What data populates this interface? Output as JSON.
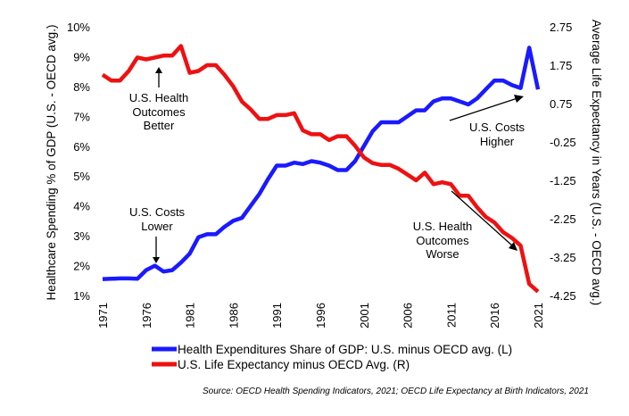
{
  "chart_data": {
    "type": "line",
    "title": "",
    "xlabel": "",
    "ylabel": "Healthcare Spending % of GDP (U.S. - OECD avg.)",
    "y2label": "Average Life Expectancy in Years (U.S. - OECD avg.)",
    "ylim": [
      1,
      10
    ],
    "y2lim": [
      -4.25,
      2.75
    ],
    "xlim": [
      1971,
      2021
    ],
    "grid": false,
    "legend_position": "bottom",
    "x_ticks": [
      "1971",
      "1976",
      "1981",
      "1986",
      "1991",
      "1996",
      "2001",
      "2006",
      "2011",
      "2016",
      "2021"
    ],
    "y_ticks": [
      "10%",
      "9%",
      "8%",
      "7%",
      "6%",
      "5%",
      "4%",
      "3%",
      "2%",
      "1%"
    ],
    "y2_ticks": [
      "2.75",
      "1.75",
      "0.75",
      "-0.25",
      "-1.25",
      "-2.25",
      "-3.25",
      "-4.25"
    ],
    "x": [
      1971,
      1972,
      1973,
      1974,
      1975,
      1976,
      1977,
      1978,
      1979,
      1980,
      1981,
      1982,
      1983,
      1984,
      1985,
      1986,
      1987,
      1988,
      1989,
      1990,
      1991,
      1992,
      1993,
      1994,
      1995,
      1996,
      1997,
      1998,
      1999,
      2000,
      2001,
      2002,
      2003,
      2004,
      2005,
      2006,
      2007,
      2008,
      2009,
      2010,
      2011,
      2012,
      2013,
      2014,
      2015,
      2016,
      2017,
      2018,
      2019,
      2020,
      2021
    ],
    "series": [
      {
        "name": "Health Expenditures Share of GDP: U.S. minus OECD avg. (L)",
        "axis": "left",
        "color": "#1a1aff",
        "values": [
          1.55,
          1.56,
          1.57,
          1.57,
          1.56,
          1.85,
          2.0,
          1.8,
          1.85,
          2.1,
          2.4,
          2.95,
          3.05,
          3.05,
          3.3,
          3.5,
          3.6,
          4.0,
          4.4,
          4.9,
          5.35,
          5.35,
          5.45,
          5.4,
          5.5,
          5.45,
          5.35,
          5.2,
          5.2,
          5.5,
          6.0,
          6.5,
          6.8,
          6.8,
          6.8,
          7.0,
          7.2,
          7.2,
          7.5,
          7.6,
          7.6,
          7.5,
          7.4,
          7.6,
          7.9,
          8.2,
          8.2,
          8.05,
          7.95,
          9.3,
          7.9
        ]
      },
      {
        "name": "U.S. Life Expectancy minus OECD Avg. (R)",
        "axis": "right",
        "color": "#ee1111",
        "values": [
          1.5,
          1.35,
          1.35,
          1.6,
          1.95,
          1.9,
          1.95,
          2.0,
          2.0,
          2.25,
          1.55,
          1.6,
          1.75,
          1.75,
          1.5,
          1.2,
          0.8,
          0.6,
          0.35,
          0.35,
          0.45,
          0.45,
          0.5,
          0.05,
          -0.05,
          -0.05,
          -0.2,
          -0.1,
          -0.1,
          -0.35,
          -0.65,
          -0.8,
          -0.85,
          -0.85,
          -0.95,
          -1.1,
          -1.25,
          -1.05,
          -1.35,
          -1.3,
          -1.35,
          -1.65,
          -1.65,
          -1.95,
          -2.2,
          -2.35,
          -2.6,
          -2.75,
          -2.95,
          -3.95,
          -4.15
        ]
      }
    ],
    "annotations": {
      "better": [
        "U.S. Health",
        "Outcomes",
        "Better"
      ],
      "lower": [
        "U.S. Costs",
        "Lower"
      ],
      "higher": [
        "U.S. Costs",
        "Higher"
      ],
      "worse": [
        "U.S. Health",
        "Outcomes",
        "Worse"
      ]
    },
    "source": "Source: OECD Health Spending Indicators, 2021; OECD Life Expectancy at Birth Indicators, 2021"
  }
}
